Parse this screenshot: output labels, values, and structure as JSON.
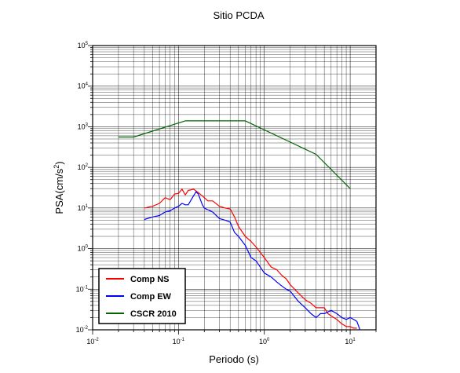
{
  "chart_data": {
    "type": "line",
    "title": "Sitio PCDA",
    "xlabel": "Periodo (s)",
    "ylabel_main": "PSA(cm/s",
    "ylabel_sup": "2",
    "ylabel_close": ")",
    "x_scale": "log",
    "y_scale": "log",
    "xlim": [
      0.01,
      20
    ],
    "ylim": [
      0.01,
      100000
    ],
    "grid": true,
    "legend_placement": "bottom-left",
    "x_ticks": [
      {
        "value": 0.01,
        "base": "10",
        "exp": "-2"
      },
      {
        "value": 0.1,
        "base": "10",
        "exp": "-1"
      },
      {
        "value": 1,
        "base": "10",
        "exp": "0"
      },
      {
        "value": 10,
        "base": "10",
        "exp": "1"
      }
    ],
    "y_ticks": [
      {
        "value": 0.01,
        "base": "10",
        "exp": "-2"
      },
      {
        "value": 0.1,
        "base": "10",
        "exp": "-1"
      },
      {
        "value": 1,
        "base": "10",
        "exp": "0"
      },
      {
        "value": 10,
        "base": "10",
        "exp": "1"
      },
      {
        "value": 100,
        "base": "10",
        "exp": "2"
      },
      {
        "value": 1000,
        "base": "10",
        "exp": "3"
      },
      {
        "value": 10000,
        "base": "10",
        "exp": "4"
      },
      {
        "value": 100000,
        "base": "10",
        "exp": "5"
      }
    ],
    "series": [
      {
        "name": "Comp NS",
        "color": "#ff0000",
        "x": [
          0.04,
          0.05,
          0.06,
          0.07,
          0.08,
          0.09,
          0.1,
          0.11,
          0.12,
          0.13,
          0.15,
          0.17,
          0.2,
          0.22,
          0.25,
          0.3,
          0.35,
          0.4,
          0.45,
          0.5,
          0.6,
          0.7,
          0.8,
          1.0,
          1.2,
          1.4,
          1.6,
          1.8,
          2.0,
          2.5,
          3.0,
          3.5,
          4.0,
          4.5,
          5.0,
          5.5,
          6.0,
          7.0,
          8.0,
          9.0,
          10.0,
          11.0,
          12.0
        ],
        "y": [
          10,
          11,
          13,
          18,
          16,
          22,
          23,
          29,
          21,
          27,
          29,
          24,
          18,
          15,
          15,
          11,
          10,
          9.5,
          6,
          3.5,
          2.0,
          1.5,
          1.1,
          0.6,
          0.35,
          0.3,
          0.22,
          0.18,
          0.13,
          0.08,
          0.055,
          0.045,
          0.035,
          0.035,
          0.035,
          0.025,
          0.022,
          0.018,
          0.014,
          0.012,
          0.012,
          0.011,
          0.011
        ]
      },
      {
        "name": "Comp EW",
        "color": "#0000ff",
        "x": [
          0.04,
          0.05,
          0.06,
          0.07,
          0.08,
          0.09,
          0.1,
          0.11,
          0.12,
          0.13,
          0.15,
          0.16,
          0.17,
          0.19,
          0.2,
          0.22,
          0.25,
          0.3,
          0.35,
          0.4,
          0.45,
          0.5,
          0.6,
          0.7,
          0.8,
          1.0,
          1.2,
          1.4,
          1.6,
          1.8,
          2.0,
          2.5,
          3.0,
          3.5,
          4.0,
          4.5,
          5.0,
          6.0,
          7.0,
          8.0,
          9.0,
          10.0,
          11.0,
          12.0,
          13.0
        ],
        "y": [
          5.2,
          6,
          6.5,
          8,
          8.5,
          10,
          11,
          13,
          12,
          12,
          20,
          25,
          22,
          12,
          10,
          9,
          8,
          5.5,
          5,
          4.5,
          2.5,
          2,
          1.2,
          0.6,
          0.5,
          0.25,
          0.2,
          0.15,
          0.12,
          0.1,
          0.09,
          0.05,
          0.035,
          0.025,
          0.02,
          0.025,
          0.025,
          0.03,
          0.025,
          0.02,
          0.018,
          0.02,
          0.018,
          0.016,
          0.01
        ]
      },
      {
        "name": "CSCR 2010",
        "color": "#006400",
        "x": [
          0.02,
          0.03,
          0.12,
          0.6,
          4.0,
          10.0
        ],
        "y": [
          560,
          560,
          1400,
          1400,
          210,
          30
        ]
      }
    ]
  }
}
